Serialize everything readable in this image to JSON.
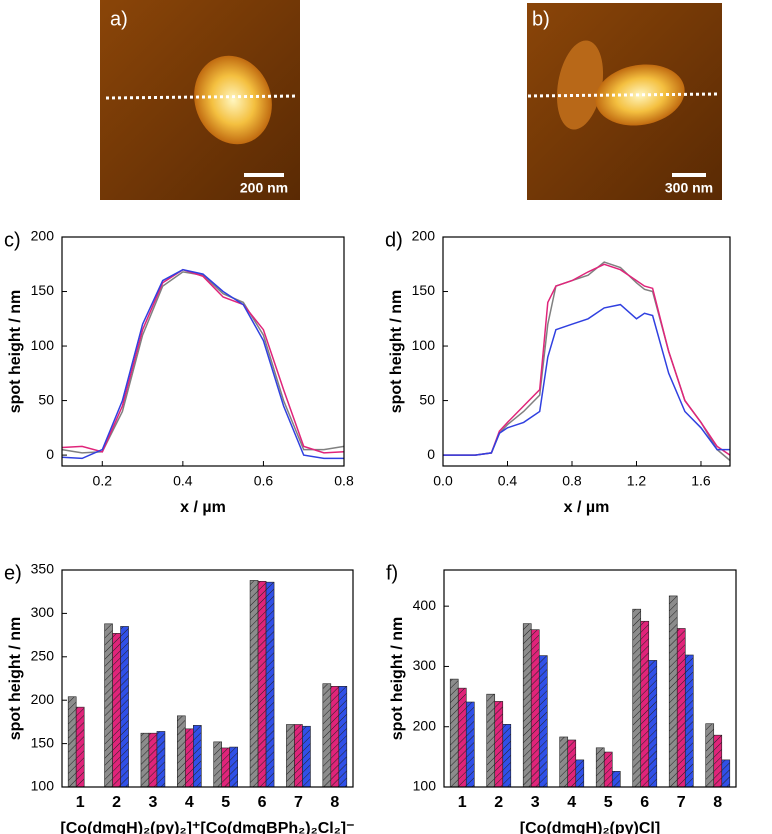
{
  "images": [
    {
      "label": "a)",
      "scale_bar": "200 nm"
    },
    {
      "label": "b)",
      "scale_bar": "300 nm"
    }
  ],
  "chart_data": [
    {
      "type": "line",
      "title": "c)",
      "x_label": "x / µm",
      "y_label": "spot height / nm",
      "xlim": [
        0.1,
        0.8
      ],
      "xticks": [
        0.2,
        0.4,
        0.6,
        0.8
      ],
      "ylim": [
        -10,
        200
      ],
      "yticks": [
        0,
        50,
        100,
        150,
        200
      ],
      "x": [
        0.1,
        0.15,
        0.2,
        0.25,
        0.3,
        0.35,
        0.4,
        0.45,
        0.5,
        0.55,
        0.6,
        0.65,
        0.7,
        0.75,
        0.8
      ],
      "series": [
        {
          "color": "#808080",
          "values": [
            5,
            2,
            3,
            40,
            110,
            155,
            168,
            165,
            148,
            140,
            110,
            50,
            5,
            5,
            8
          ]
        },
        {
          "color": "#e0247a",
          "values": [
            7,
            8,
            3,
            45,
            115,
            158,
            170,
            164,
            145,
            138,
            115,
            60,
            8,
            2,
            3
          ]
        },
        {
          "color": "#3040e0",
          "values": [
            -2,
            -3,
            5,
            50,
            120,
            160,
            170,
            166,
            150,
            138,
            105,
            45,
            0,
            -3,
            -3
          ]
        }
      ]
    },
    {
      "type": "line",
      "title": "d)",
      "x_label": "x / µm",
      "y_label": "spot height / nm",
      "xlim": [
        0,
        1.78
      ],
      "xticks": [
        {
          "value": 0,
          "label": "0.0"
        },
        0.4,
        0.8,
        1.2,
        1.6
      ],
      "ylim": [
        -10,
        200
      ],
      "yticks": [
        0,
        50,
        100,
        150,
        200
      ],
      "x": [
        0,
        0.1,
        0.2,
        0.3,
        0.35,
        0.4,
        0.5,
        0.6,
        0.65,
        0.7,
        0.8,
        0.9,
        1.0,
        1.1,
        1.2,
        1.25,
        1.3,
        1.4,
        1.5,
        1.6,
        1.7,
        1.78
      ],
      "series": [
        {
          "color": "#808080",
          "values": [
            0,
            0,
            0,
            2,
            20,
            28,
            40,
            55,
            120,
            155,
            160,
            165,
            177,
            172,
            158,
            152,
            150,
            95,
            50,
            30,
            5,
            -5
          ]
        },
        {
          "color": "#e0247a",
          "values": [
            0,
            0,
            0,
            2,
            22,
            30,
            45,
            60,
            140,
            155,
            160,
            168,
            175,
            170,
            160,
            155,
            153,
            95,
            50,
            30,
            8,
            0
          ]
        },
        {
          "color": "#3040e0",
          "values": [
            0,
            0,
            0,
            2,
            20,
            25,
            30,
            40,
            90,
            115,
            120,
            125,
            135,
            138,
            125,
            130,
            128,
            75,
            40,
            25,
            5,
            5
          ]
        }
      ]
    },
    {
      "type": "bar",
      "title": "e)",
      "x_label": "[Co(dmgH)₂(py)₂]⁺[Co(dmgBPh₂)₂Cl₂]⁻",
      "y_label": "spot height / nm",
      "categories": [
        "1",
        "2",
        "3",
        "4",
        "5",
        "6",
        "7",
        "8"
      ],
      "ylim": [
        100,
        350
      ],
      "yticks": [
        100,
        150,
        200,
        250,
        300,
        350
      ],
      "series": [
        {
          "color": "#8c8c8c",
          "values": [
            204,
            288,
            162,
            182,
            152,
            338,
            172,
            219
          ]
        },
        {
          "color": "#e0247a",
          "values": [
            192,
            277,
            162,
            167,
            145,
            337,
            172,
            216
          ]
        },
        {
          "color": "#3050e8",
          "values": [
            null,
            285,
            164,
            171,
            146,
            336,
            170,
            216
          ]
        }
      ]
    },
    {
      "type": "bar",
      "title": "f)",
      "x_label": "[Co(dmgH)₂(py)Cl]",
      "y_label": "spot height / nm",
      "categories": [
        "1",
        "2",
        "3",
        "4",
        "5",
        "6",
        "7",
        "8"
      ],
      "ylim": [
        100,
        460
      ],
      "yticks": [
        100,
        200,
        300,
        400
      ],
      "series": [
        {
          "color": "#8c8c8c",
          "values": [
            279,
            254,
            371,
            183,
            165,
            395,
            417,
            205
          ]
        },
        {
          "color": "#e0247a",
          "values": [
            264,
            242,
            361,
            178,
            158,
            375,
            363,
            186
          ]
        },
        {
          "color": "#3050e8",
          "values": [
            241,
            204,
            318,
            145,
            126,
            310,
            319,
            145
          ]
        }
      ]
    }
  ]
}
